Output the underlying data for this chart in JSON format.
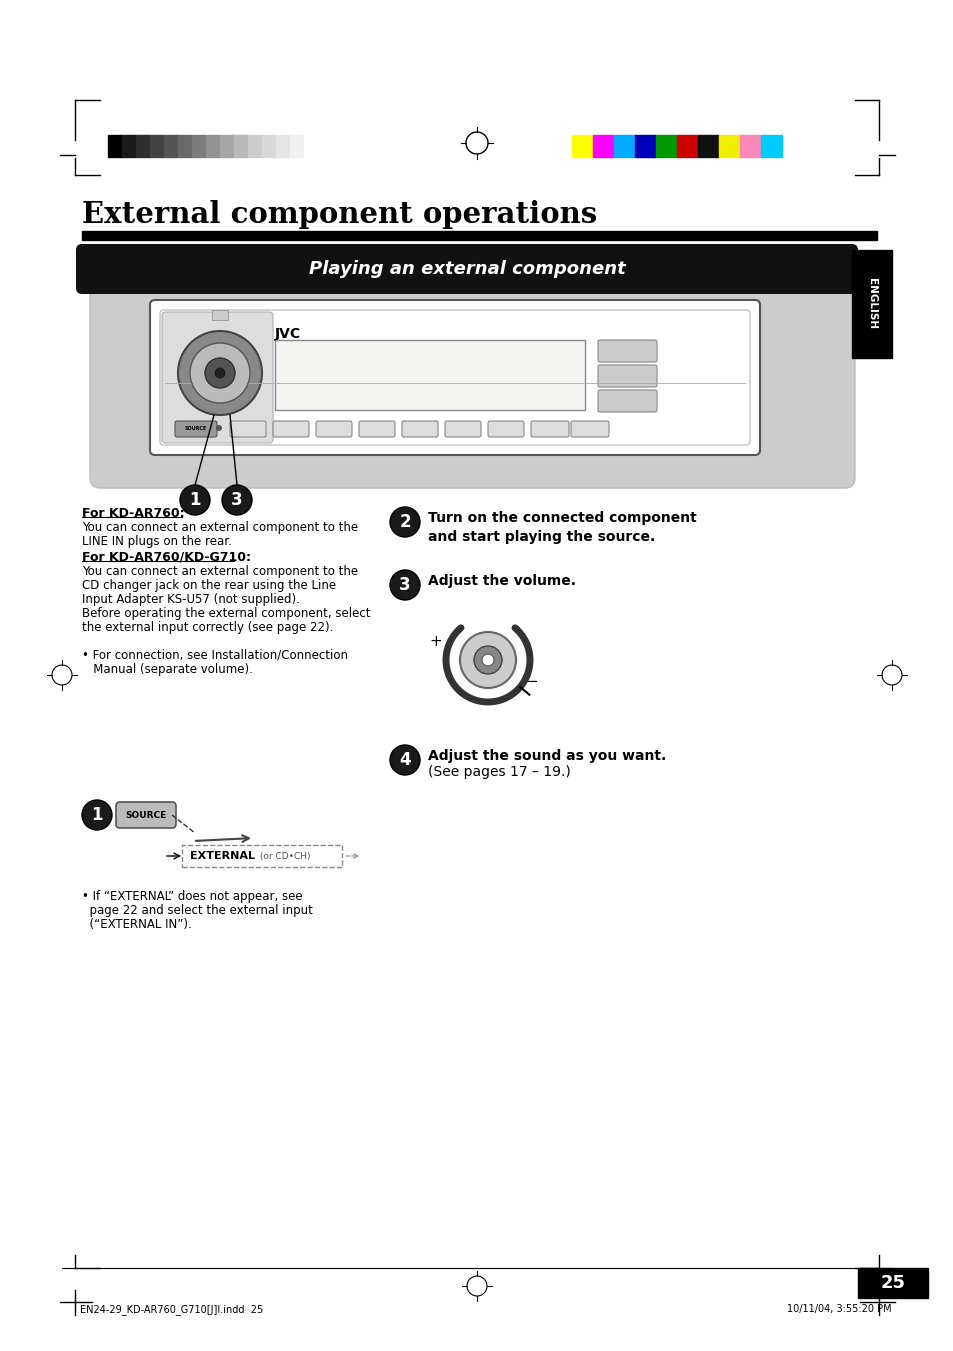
{
  "bg_color": "#ffffff",
  "title": "External component operations",
  "section_header": "Playing an external component",
  "page_number": "25",
  "footer_left": "EN24-29_KD-AR760_G710[J]I.indd  25",
  "footer_right": "10/11/04, 3:55:20 PM",
  "gray_gradient": [
    "#000000",
    "#1a1a1a",
    "#2e2e2e",
    "#424242",
    "#555555",
    "#696969",
    "#7d7d7d",
    "#919191",
    "#a5a5a5",
    "#b9b9b9",
    "#cccccc",
    "#d8d8d8",
    "#e5e5e5",
    "#f0f0f0",
    "#ffffff"
  ],
  "color_bars": [
    "#ffff00",
    "#ff00ff",
    "#00aaff",
    "#0000bb",
    "#009900",
    "#cc0000",
    "#111111",
    "#eeee00",
    "#ff88bb",
    "#00ccff"
  ],
  "english_tab_color": "#000000",
  "text_for_kd_ar760_header": "For KD-AR760:",
  "text_for_kd_ar760_line1": "You can connect an external component to the",
  "text_for_kd_ar760_line2": "LINE IN plugs on the rear.",
  "text_for_kd_ar760_kd_g710_header": "For KD-AR760/KD-G710:",
  "text_for_kd_ar760_kd_g710_line1": "You can connect an external component to the",
  "text_for_kd_ar760_kd_g710_line2": "CD changer jack on the rear using the Line",
  "text_for_kd_ar760_kd_g710_line3": "Input Adapter KS-U57 (not supplied).",
  "text_for_kd_ar760_kd_g710_line4": "Before operating the external component, select",
  "text_for_kd_ar760_kd_g710_line5": "the external input correctly (see page 22).",
  "text_bullet1_line1": "• For connection, see Installation/Connection",
  "text_bullet1_line2": "   Manual (separate volume).",
  "step2_text": "Turn on the connected component\nand start playing the source.",
  "step3_text": "Adjust the volume.",
  "step4_text_line1": "Adjust the sound as you want.",
  "step4_text_line2": "(See pages 17 – 19.)",
  "bullet2_line1": "• If “EXTERNAL” does not appear, see",
  "bullet2_line2": "  page 22 and select the external input",
  "bullet2_line3": "  (“EXTERNAL IN”)."
}
